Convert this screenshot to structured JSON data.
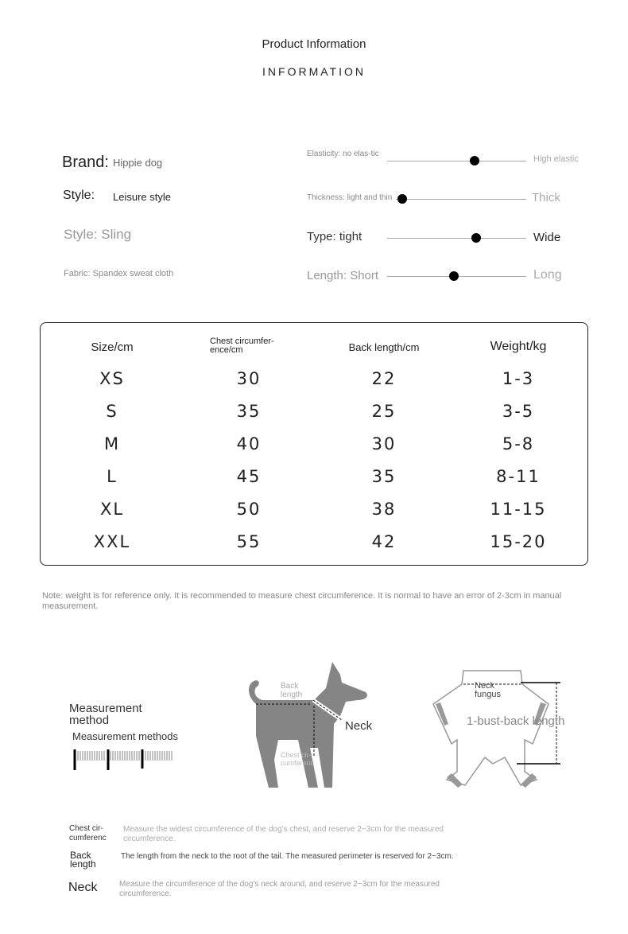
{
  "header": {
    "title": "Product Information",
    "subtitle": "INFORMATION"
  },
  "attributes": [
    {
      "label": "Brand:",
      "value": "Hippie dog"
    },
    {
      "label": "Style:",
      "value": "Leisure style"
    },
    {
      "text": "Style: Sling"
    },
    {
      "text": "Fabric: Spandex sweat cloth"
    }
  ],
  "scales": [
    {
      "left": "Elasticity: no elas-tic",
      "right": "High elastic",
      "level": 0.63
    },
    {
      "left": "Thickness: light and thin",
      "right": "Thick",
      "level": 0.05
    },
    {
      "left": "Type: tight",
      "right": "Wide",
      "level": 0.64
    },
    {
      "left": "Length: Short",
      "right": "Long",
      "level": 0.48
    }
  ],
  "size_table": {
    "headers": [
      "Size/cm",
      "Chest circumfer-ence/cm",
      "Back length/cm",
      "Weight/kg"
    ],
    "rows": [
      [
        "XS",
        "30",
        "22",
        "1-3"
      ],
      [
        "S",
        "35",
        "25",
        "3-5"
      ],
      [
        "M",
        "40",
        "30",
        "5-8"
      ],
      [
        "L",
        "45",
        "35",
        "8-11"
      ],
      [
        "XL",
        "50",
        "38",
        "11-15"
      ],
      [
        "XXL",
        "55",
        "42",
        "15-20"
      ]
    ]
  },
  "note": "Note: weight is for reference only. It is recommended to measure chest circumference. It is normal to have an error of 2-3cm in manual measurement.",
  "measurement": {
    "title": "Measurement method",
    "subtitle": "Measurement methods",
    "dog_labels": {
      "back": "Back length",
      "neck": "Neck",
      "chest": "Chest cir-cumferenc"
    },
    "garment_labels": {
      "neck": "Neck fungus",
      "length": "1-bust-back length"
    }
  },
  "instructions": [
    {
      "term": "Chest cir-cumferenc",
      "text": "Measure the widest circumference of the dog's chest, and reserve 2~3cm for the measured circumference."
    },
    {
      "term": "Back length",
      "text": "The length from the neck to the root of the tail. The measured perimeter is reserved for 2~3cm."
    },
    {
      "term": "Neck",
      "text": "Measure the circumference of the dog's neck around, and reserve 2~3cm for the measured circumference."
    }
  ]
}
